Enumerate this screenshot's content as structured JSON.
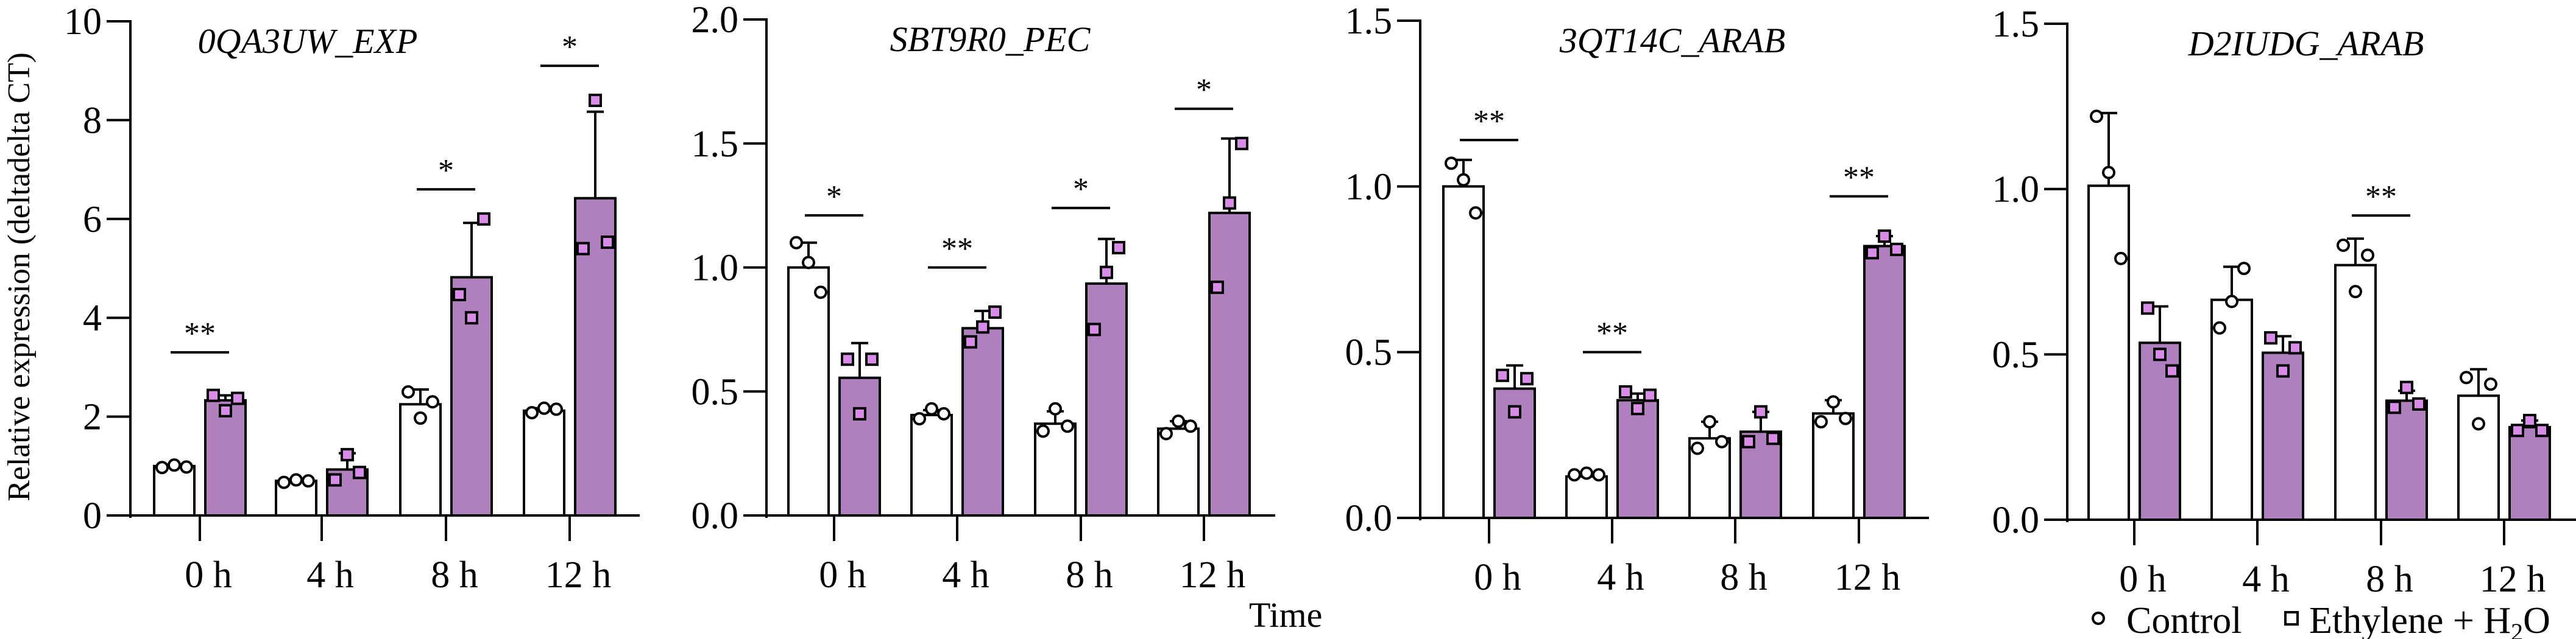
{
  "chart_data": {
    "type": "bar",
    "ylabel": "Relative expression (deltadelta CT)",
    "xlabel": "Time",
    "categories": [
      "0 h",
      "4 h",
      "8 h",
      "12 h"
    ],
    "legend": {
      "placement": "bottom-right",
      "entries": [
        {
          "label": "Control",
          "marker": "circle"
        },
        {
          "label_main": "Ethylene + H",
          "label_sub": "2",
          "label_end": "O",
          "marker": "square"
        }
      ]
    },
    "colors": {
      "control_fill": "#FFFFFF",
      "ethylene_fill": "#B07FBE",
      "ethylene_point": "#D98BE8",
      "stroke": "#000000"
    },
    "panels": [
      {
        "title": "0QA3UW_EXP",
        "ylim": [
          0,
          10
        ],
        "yticks": [
          0,
          2,
          4,
          6,
          8,
          10
        ],
        "ytick_labels": [
          "0",
          "2",
          "4",
          "6",
          "8",
          "10"
        ],
        "series": [
          {
            "name": "Control",
            "values": [
              1.0,
              0.7,
              2.25,
              2.12
            ],
            "sd": [
              0.03,
              0.03,
              0.3,
              0.05
            ],
            "points": [
              [
                0.97,
                1.02,
                0.98
              ],
              [
                0.67,
                0.72,
                0.7
              ],
              [
                2.5,
                1.97,
                2.3
              ],
              [
                2.08,
                2.17,
                2.15
              ]
            ]
          },
          {
            "name": "Ethylene + H2O",
            "values": [
              2.33,
              0.93,
              4.82,
              6.42
            ],
            "sd": [
              0.1,
              0.33,
              1.1,
              1.75
            ],
            "points": [
              [
                2.43,
                2.12,
                2.37
              ],
              [
                0.72,
                1.23,
                0.87
              ],
              [
                4.47,
                4.0,
                6.0
              ],
              [
                5.4,
                8.4,
                5.53
              ]
            ]
          }
        ],
        "significance": [
          {
            "group": 0,
            "label": "**",
            "y": 3.3
          },
          {
            "group": 2,
            "label": "*",
            "y": 6.6
          },
          {
            "group": 3,
            "label": "*",
            "y": 9.1
          }
        ]
      },
      {
        "title": "SBT9R0_PEC",
        "ylim": [
          0,
          2.0
        ],
        "yticks": [
          0,
          0.5,
          1.0,
          1.5,
          2.0
        ],
        "ytick_labels": [
          "0.0",
          "0.5",
          "1.0",
          "1.5",
          "2.0"
        ],
        "series": [
          {
            "name": "Control",
            "values": [
              1.0,
              0.405,
              0.37,
              0.35
            ],
            "sd": [
              0.1,
              0.02,
              0.05,
              0.03
            ],
            "points": [
              [
                1.1,
                1.02,
                0.9
              ],
              [
                0.39,
                0.43,
                0.41
              ],
              [
                0.34,
                0.43,
                0.36
              ],
              [
                0.33,
                0.38,
                0.36
              ]
            ]
          },
          {
            "name": "Ethylene + H2O",
            "values": [
              0.555,
              0.755,
              0.935,
              1.22
            ],
            "sd": [
              0.14,
              0.07,
              0.18,
              0.3
            ],
            "points": [
              [
                0.63,
                0.41,
                0.63
              ],
              [
                0.7,
                0.76,
                0.82
              ],
              [
                0.75,
                0.98,
                1.08
              ],
              [
                0.92,
                1.26,
                1.5
              ]
            ]
          }
        ],
        "significance": [
          {
            "group": 0,
            "label": "*",
            "y": 1.21
          },
          {
            "group": 1,
            "label": "**",
            "y": 1.0
          },
          {
            "group": 2,
            "label": "*",
            "y": 1.24
          },
          {
            "group": 3,
            "label": "*",
            "y": 1.64
          }
        ]
      },
      {
        "title": "3QT14C_ARAB",
        "ylim": [
          0,
          1.5
        ],
        "yticks": [
          0,
          0.5,
          1.0,
          1.5
        ],
        "ytick_labels": [
          "0.0",
          "0.5",
          "1.0",
          "1.5"
        ],
        "series": [
          {
            "name": "Control",
            "values": [
              1.0,
              0.125,
              0.24,
              0.315
            ],
            "sd": [
              0.08,
              0.01,
              0.05,
              0.04
            ],
            "points": [
              [
                1.07,
                1.02,
                0.92
              ],
              [
                0.13,
                0.135,
                0.13
              ],
              [
                0.21,
                0.29,
                0.23
              ],
              [
                0.29,
                0.35,
                0.3
              ]
            ]
          },
          {
            "name": "Ethylene + H2O",
            "values": [
              0.39,
              0.355,
              0.26,
              0.82
            ],
            "sd": [
              0.07,
              0.02,
              0.06,
              0.03
            ],
            "points": [
              [
                0.43,
                0.32,
                0.42
              ],
              [
                0.38,
                0.33,
                0.37
              ],
              [
                0.23,
                0.32,
                0.24
              ],
              [
                0.8,
                0.85,
                0.81
              ]
            ]
          }
        ],
        "significance": [
          {
            "group": 0,
            "label": "**",
            "y": 1.14
          },
          {
            "group": 1,
            "label": "**",
            "y": 0.5
          },
          {
            "group": 3,
            "label": "**",
            "y": 0.97
          }
        ]
      },
      {
        "title": "D2IUDG_ARAB",
        "ylim": [
          0,
          1.5
        ],
        "yticks": [
          0,
          0.5,
          1.0,
          1.5
        ],
        "ytick_labels": [
          "0.0",
          "0.5",
          "1.0",
          "1.5"
        ],
        "series": [
          {
            "name": "Control",
            "values": [
              1.01,
              0.665,
              0.77,
              0.375
            ],
            "sd": [
              0.22,
              0.1,
              0.08,
              0.08
            ],
            "points": [
              [
                1.22,
                1.05,
                0.79
              ],
              [
                0.58,
                0.66,
                0.76
              ],
              [
                0.83,
                0.69,
                0.8
              ],
              [
                0.43,
                0.29,
                0.41
              ]
            ]
          },
          {
            "name": "Ethylene + H2O",
            "values": [
              0.535,
              0.505,
              0.36,
              0.28
            ],
            "sd": [
              0.11,
              0.05,
              0.03,
              0.02
            ],
            "points": [
              [
                0.64,
                0.5,
                0.45
              ],
              [
                0.55,
                0.45,
                0.52
              ],
              [
                0.34,
                0.4,
                0.35
              ],
              [
                0.27,
                0.3,
                0.27
              ]
            ]
          }
        ],
        "significance": [
          {
            "group": 2,
            "label": "**",
            "y": 0.92
          }
        ]
      }
    ]
  }
}
